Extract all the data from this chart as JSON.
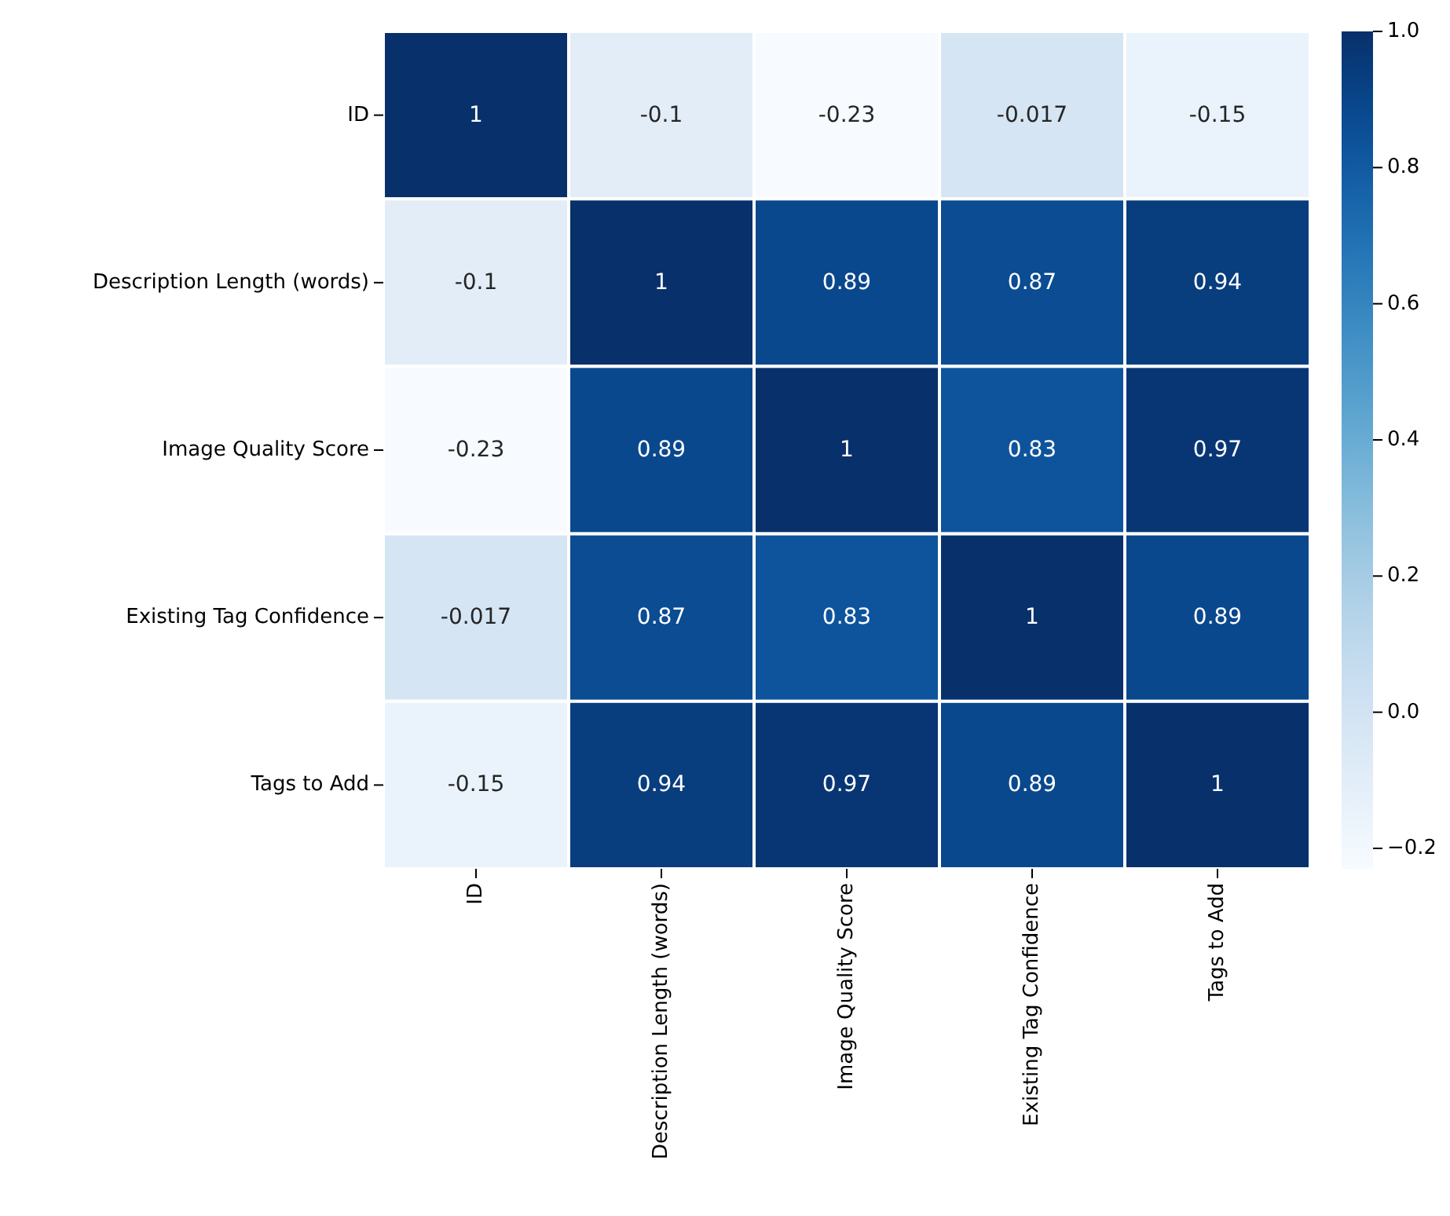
{
  "chart_data": {
    "type": "heatmap",
    "categories": [
      "ID",
      "Description Length (words)",
      "Image Quality Score",
      "Existing Tag Confidence",
      "Tags to Add"
    ],
    "y_categories": [
      "ID",
      "Description Length (words)",
      "Image Quality Score",
      "Existing Tag Confidence",
      "Tags to Add"
    ],
    "cells": [
      [
        1,
        -0.1,
        -0.23,
        -0.017,
        -0.15
      ],
      [
        -0.1,
        1,
        0.89,
        0.87,
        0.94
      ],
      [
        -0.23,
        0.89,
        1,
        0.83,
        0.97
      ],
      [
        -0.017,
        0.87,
        0.83,
        1,
        0.89
      ],
      [
        -0.15,
        0.94,
        0.97,
        0.89,
        1
      ]
    ],
    "clim": [
      -0.23,
      1
    ],
    "cticks": [
      {
        "value": -0.2,
        "label": "−0.2"
      },
      {
        "value": 0,
        "label": "0.0"
      },
      {
        "value": 0.2,
        "label": "0.2"
      },
      {
        "value": 0.4,
        "label": "0.4"
      },
      {
        "value": 0.6,
        "label": "0.6"
      },
      {
        "value": 0.8,
        "label": "0.8"
      },
      {
        "value": 1,
        "label": "1.0"
      }
    ],
    "data_labels": true
  }
}
